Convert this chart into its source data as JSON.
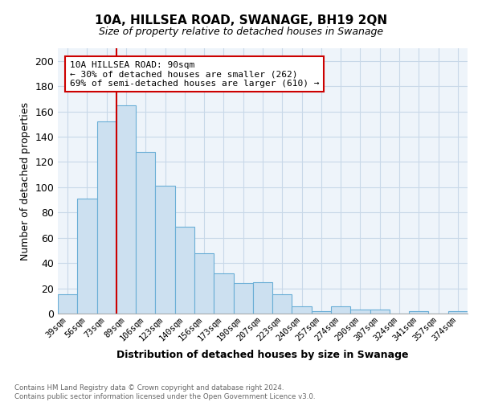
{
  "title": "10A, HILLSEA ROAD, SWANAGE, BH19 2QN",
  "subtitle": "Size of property relative to detached houses in Swanage",
  "xlabel": "Distribution of detached houses by size in Swanage",
  "ylabel": "Number of detached properties",
  "bar_labels": [
    "39sqm",
    "56sqm",
    "73sqm",
    "89sqm",
    "106sqm",
    "123sqm",
    "140sqm",
    "156sqm",
    "173sqm",
    "190sqm",
    "207sqm",
    "223sqm",
    "240sqm",
    "257sqm",
    "274sqm",
    "290sqm",
    "307sqm",
    "324sqm",
    "341sqm",
    "357sqm",
    "374sqm"
  ],
  "bar_values": [
    15,
    91,
    152,
    165,
    128,
    101,
    69,
    48,
    32,
    24,
    25,
    15,
    6,
    2,
    6,
    3,
    3,
    0,
    2,
    0,
    2
  ],
  "bar_color": "#cce0f0",
  "bar_edge_color": "#6aaed6",
  "highlight_bar_index": 3,
  "highlight_color": "#cc0000",
  "ylim": [
    0,
    210
  ],
  "yticks": [
    0,
    20,
    40,
    60,
    80,
    100,
    120,
    140,
    160,
    180,
    200
  ],
  "annotation_title": "10A HILLSEA ROAD: 90sqm",
  "annotation_line1": "← 30% of detached houses are smaller (262)",
  "annotation_line2": "69% of semi-detached houses are larger (610) →",
  "annotation_box_color": "#ffffff",
  "annotation_box_edge": "#cc0000",
  "footer_line1": "Contains HM Land Registry data © Crown copyright and database right 2024.",
  "footer_line2": "Contains public sector information licensed under the Open Government Licence v3.0.",
  "background_color": "#ffffff",
  "grid_color": "#c8d8e8"
}
